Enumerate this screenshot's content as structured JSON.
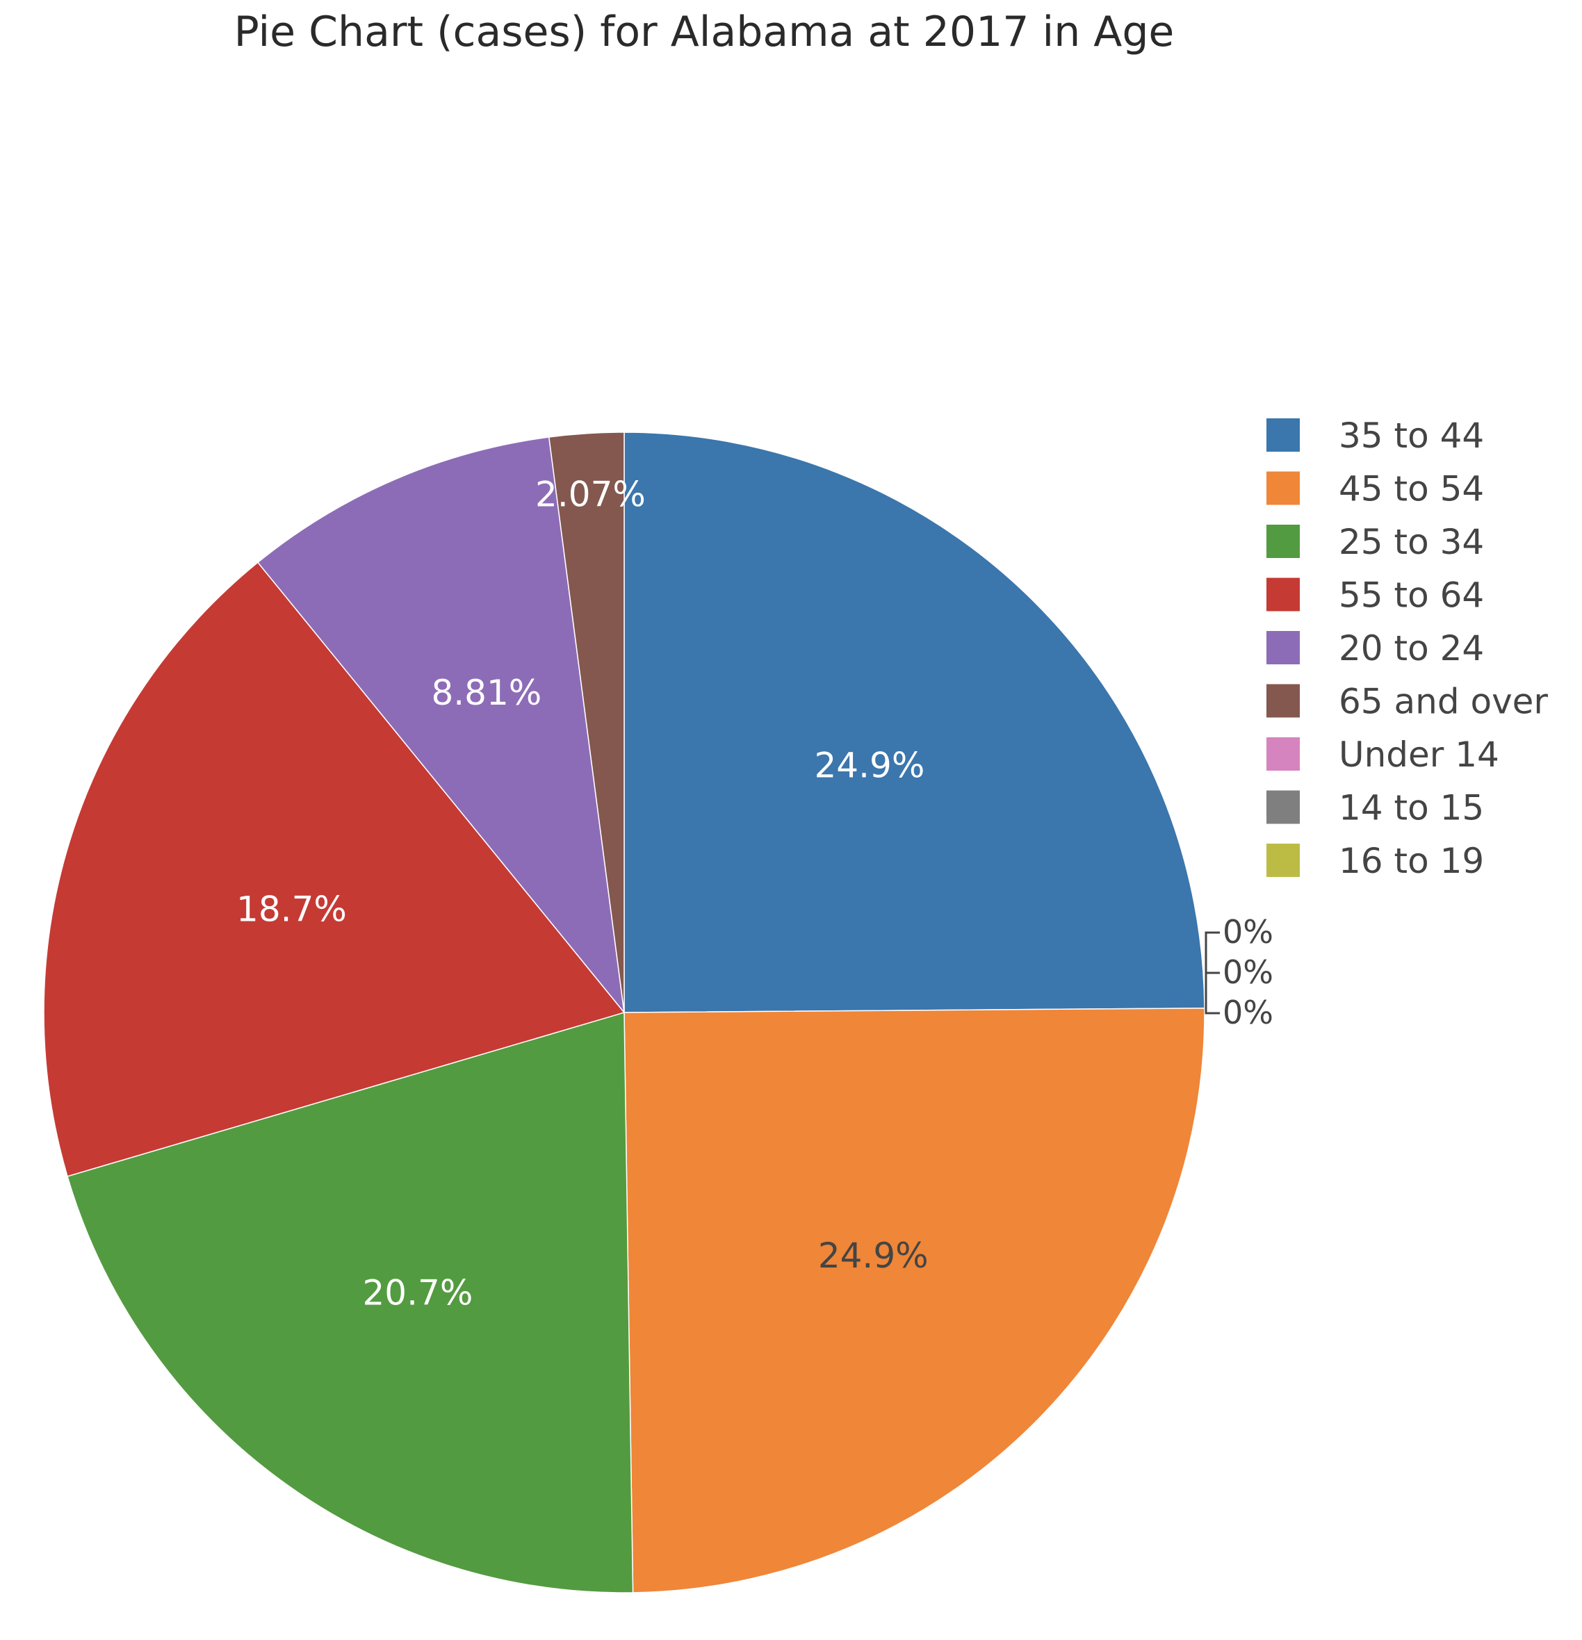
{
  "chart_data": {
    "type": "pie",
    "title": "Pie Chart (cases) for Alabama at 2017 in Age",
    "slices": [
      {
        "label": "35 to 44",
        "percent": 24.9,
        "text": "24.9%",
        "color": "#3b76ad",
        "text_color": "#ffffff"
      },
      {
        "label": "45 to 54",
        "percent": 24.9,
        "text": "24.9%",
        "color": "#ef8638",
        "text_color": "#444444"
      },
      {
        "label": "25 to 34",
        "percent": 20.7,
        "text": "20.7%",
        "color": "#539b40",
        "text_color": "#ffffff"
      },
      {
        "label": "55 to 64",
        "percent": 18.7,
        "text": "18.7%",
        "color": "#c63a34",
        "text_color": "#ffffff"
      },
      {
        "label": "20 to 24",
        "percent": 8.81,
        "text": "8.81%",
        "color": "#8d6cb7",
        "text_color": "#ffffff"
      },
      {
        "label": "65 and over",
        "percent": 2.07,
        "text": "2.07%",
        "color": "#84584e",
        "text_color": "#ffffff"
      },
      {
        "label": "Under 14",
        "percent": 0,
        "text": "0%",
        "color": "#d684bf",
        "text_color": "#444444"
      },
      {
        "label": "14 to 15",
        "percent": 0,
        "text": "0%",
        "color": "#7f7f7f",
        "text_color": "#444444"
      },
      {
        "label": "16 to 19",
        "percent": 0,
        "text": "0%",
        "color": "#bcbc45",
        "text_color": "#444444"
      }
    ],
    "direction": "clockwise",
    "start_angle": "top",
    "legend_position": "right"
  }
}
